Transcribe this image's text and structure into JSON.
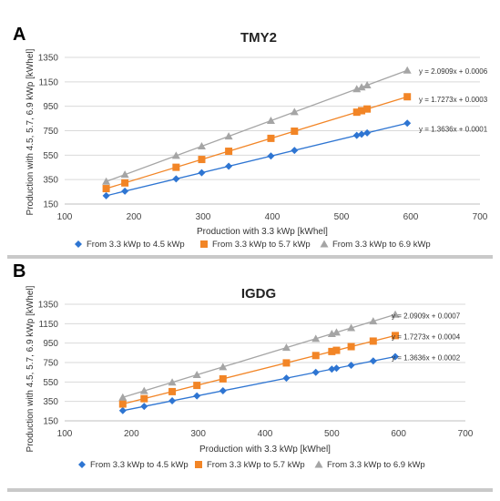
{
  "chart_data": [
    {
      "type": "scatter",
      "panel_label": "A",
      "title": "TMY2",
      "xlabel": "Production with 3.3 kWp [kWhel]",
      "ylabel": "Production with 4.5, 5.7, 6.9 kWp [kWhel]",
      "xlim": [
        100,
        700
      ],
      "ylim": [
        150,
        1350
      ],
      "xticks": [
        "100",
        "200",
        "300",
        "400",
        "500",
        "600",
        "700"
      ],
      "yticks": [
        "150",
        "350",
        "550",
        "750",
        "950",
        "1150",
        "1350"
      ],
      "grid": true,
      "legend": "bottom",
      "x": [
        160,
        187,
        261,
        298,
        337,
        398,
        432,
        522,
        529,
        537,
        595
      ],
      "series": [
        {
          "name": "From 3.3 kWp to 4.5 kWp",
          "color": "#2e75d2",
          "marker": "diamond",
          "slope": 1.3636,
          "equation": "y = 1.3636x + 0.0001"
        },
        {
          "name": "From 3.3 kWp to 5.7 kWp",
          "color": "#f28526",
          "marker": "square",
          "slope": 1.7273,
          "equation": "y = 1.7273x + 0.0003"
        },
        {
          "name": "From 3.3 kWp to 6.9 kWp",
          "color": "#a5a5a5",
          "marker": "triangle",
          "slope": 2.0909,
          "equation": "y = 2.0909x + 0.0006"
        }
      ]
    },
    {
      "type": "scatter",
      "panel_label": "B",
      "title": "IGDG",
      "xlabel": "Production with 3.3 kWp [kWhel]",
      "ylabel": "Production with 4.5, 5.7, 6.9 kWp [kWhel]",
      "xlim": [
        100,
        700
      ],
      "ylim": [
        150,
        1350
      ],
      "xticks": [
        "100",
        "200",
        "300",
        "400",
        "500",
        "600",
        "700"
      ],
      "yticks": [
        "150",
        "350",
        "550",
        "750",
        "950",
        "1150",
        "1350"
      ],
      "grid": true,
      "legend": "bottom",
      "x": [
        187,
        219,
        261,
        298,
        337,
        432,
        476,
        500,
        507,
        529,
        562,
        595
      ],
      "series": [
        {
          "name": "From 3.3 kWp to 4.5 kWp",
          "color": "#2e75d2",
          "marker": "diamond",
          "slope": 1.3636,
          "equation": "y = 1.3636x + 0.0002"
        },
        {
          "name": "From 3.3 kWp to 5.7 kWp",
          "color": "#f28526",
          "marker": "square",
          "slope": 1.7273,
          "equation": "y = 1.7273x + 0.0004"
        },
        {
          "name": "From 3.3 kWp to 6.9 kWp",
          "color": "#a5a5a5",
          "marker": "triangle",
          "slope": 2.0909,
          "equation": "y = 2.0909x + 0.0007"
        }
      ]
    }
  ]
}
